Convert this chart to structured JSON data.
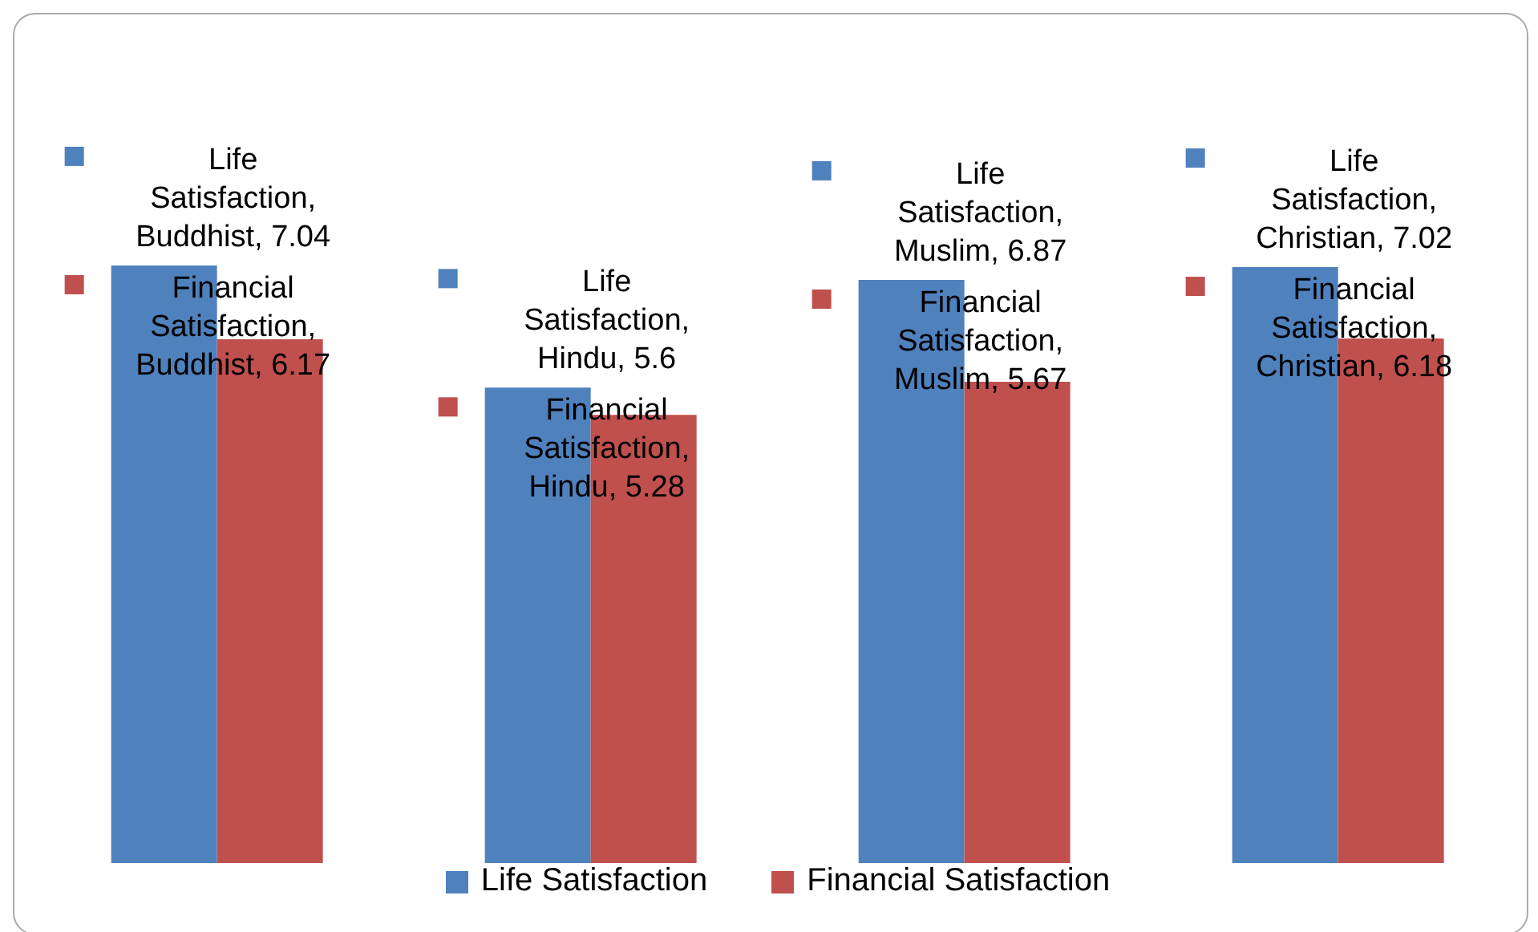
{
  "chart_data": {
    "type": "bar",
    "categories": [
      null,
      null,
      null,
      null
    ],
    "series": [
      {
        "name": "Life Satisfaction",
        "color": "#4f81bd",
        "values": [
          7.04,
          5.6,
          6.87,
          7.02
        ],
        "value_labels": [
          "Life Satisfaction, Buddhist, 7.04",
          "Life Satisfaction, Hindu, 5.6",
          "Life Satisfaction, Muslim, 6.87",
          "Life Satisfaction, Christian, 7.02"
        ]
      },
      {
        "name": "Financial Satisfaction",
        "color": "#c0504d",
        "values": [
          6.17,
          5.28,
          5.67,
          6.18
        ],
        "value_labels": [
          "Financial Satisfaction, Buddhist, 6.17",
          "Financial Satisfaction, Hindu, 5.28",
          "Financial Satisfaction, Muslim, 5.67",
          "Financial Satisfaction, Christian, 6.18"
        ]
      }
    ],
    "legend": "bottom"
  }
}
